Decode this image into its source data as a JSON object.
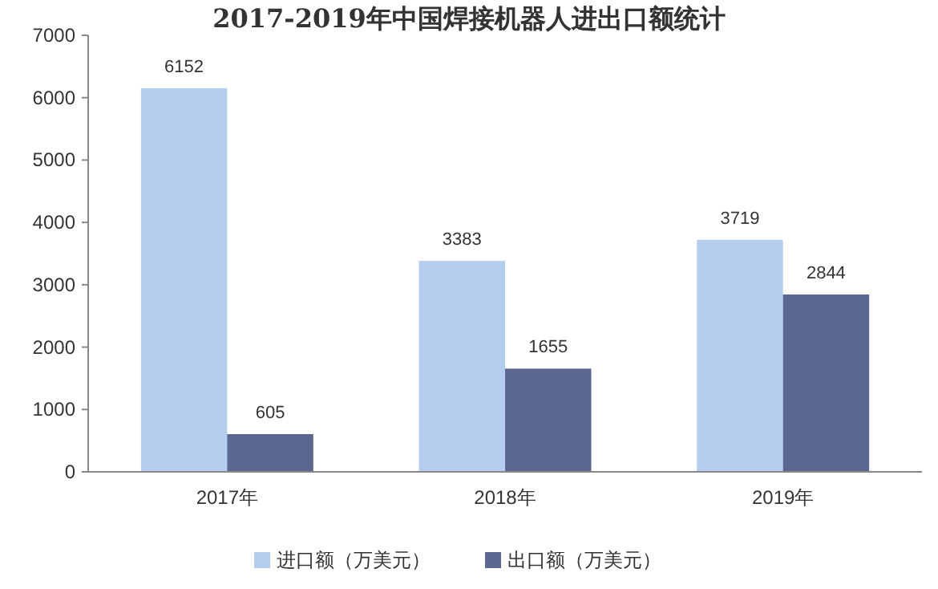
{
  "chart_data": {
    "type": "bar",
    "title": "2017-2019年中国焊接机器人进出口额统计",
    "categories": [
      "2017年",
      "2018年",
      "2019年"
    ],
    "series": [
      {
        "name": "进口额（万美元）",
        "color": "#b4cdef",
        "values": [
          6152,
          3383,
          3719
        ]
      },
      {
        "name": "出口额（万美元）",
        "color": "#5b6791",
        "values": [
          605,
          1655,
          2844
        ]
      }
    ],
    "ylim": [
      0,
      7000
    ],
    "yticks": [
      0,
      1000,
      2000,
      3000,
      4000,
      5000,
      6000,
      7000
    ],
    "data_labels": true,
    "legend": "bottom",
    "grid": false
  }
}
